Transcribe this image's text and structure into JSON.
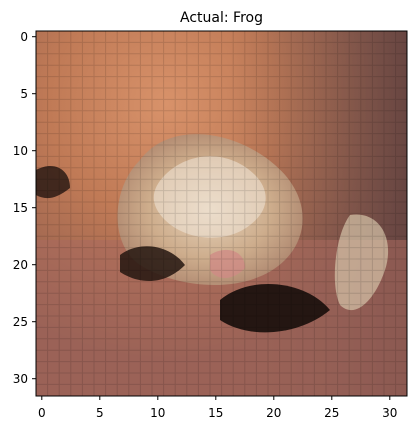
{
  "figure": {
    "title": "Actual: Frog",
    "x_ticks": [
      "0",
      "5",
      "10",
      "15",
      "20",
      "25",
      "30"
    ],
    "y_ticks": [
      "0",
      "5",
      "10",
      "15",
      "20",
      "25",
      "30"
    ],
    "image_grid": [
      32,
      32
    ],
    "image_content": "pixelated frog on reddish-brown background"
  }
}
